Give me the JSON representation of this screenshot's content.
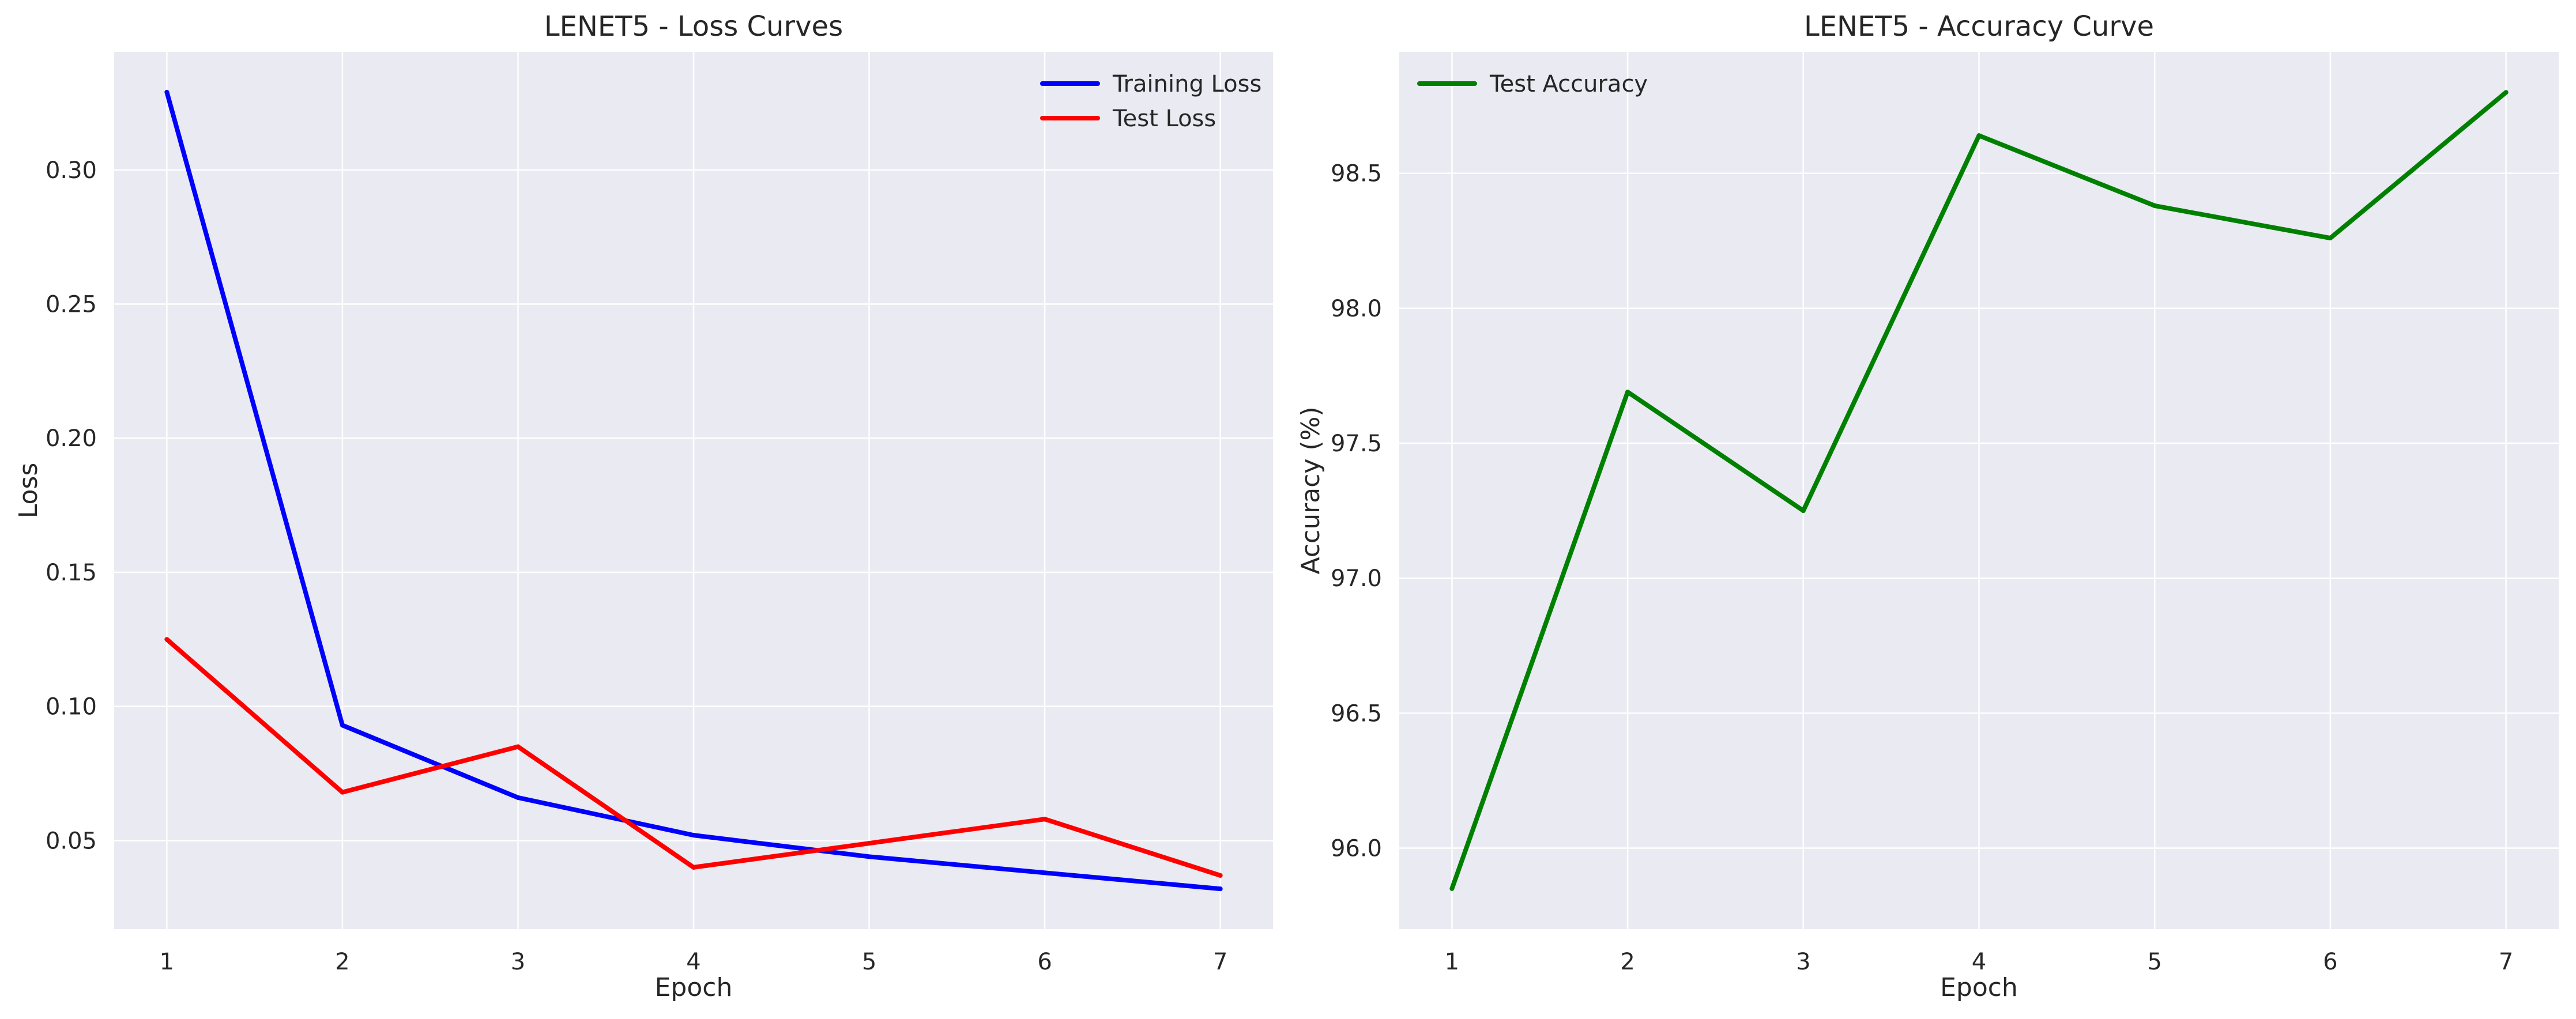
{
  "chart_data": [
    {
      "type": "line",
      "title": "LENET5 - Loss Curves",
      "xlabel": "Epoch",
      "ylabel": "Loss",
      "x": [
        1,
        2,
        3,
        4,
        5,
        6,
        7
      ],
      "xticks": [
        "1",
        "2",
        "3",
        "4",
        "5",
        "6",
        "7"
      ],
      "xlim": [
        0.7,
        7.3
      ],
      "yticks": [
        "0.05",
        "0.10",
        "0.15",
        "0.20",
        "0.25",
        "0.30"
      ],
      "ylim": [
        0.017,
        0.344
      ],
      "grid": true,
      "legend_position": "top-right",
      "series": [
        {
          "name": "Training Loss",
          "color": "#0000ff",
          "values": [
            0.329,
            0.093,
            0.066,
            0.052,
            0.044,
            0.038,
            0.032
          ]
        },
        {
          "name": "Test Loss",
          "color": "#ff0000",
          "values": [
            0.125,
            0.068,
            0.085,
            0.04,
            0.049,
            0.058,
            0.037
          ]
        }
      ]
    },
    {
      "type": "line",
      "title": "LENET5 - Accuracy Curve",
      "xlabel": "Epoch",
      "ylabel": "Accuracy (%)",
      "x": [
        1,
        2,
        3,
        4,
        5,
        6,
        7
      ],
      "xticks": [
        "1",
        "2",
        "3",
        "4",
        "5",
        "6",
        "7"
      ],
      "xlim": [
        0.7,
        7.3
      ],
      "yticks": [
        "96.0",
        "96.5",
        "97.0",
        "97.5",
        "98.0",
        "98.5"
      ],
      "ylim": [
        95.7,
        98.95
      ],
      "grid": true,
      "legend_position": "top-left",
      "series": [
        {
          "name": "Test Accuracy",
          "color": "#008000",
          "values": [
            95.85,
            97.69,
            97.25,
            98.64,
            98.38,
            98.26,
            98.8
          ]
        }
      ]
    }
  ]
}
